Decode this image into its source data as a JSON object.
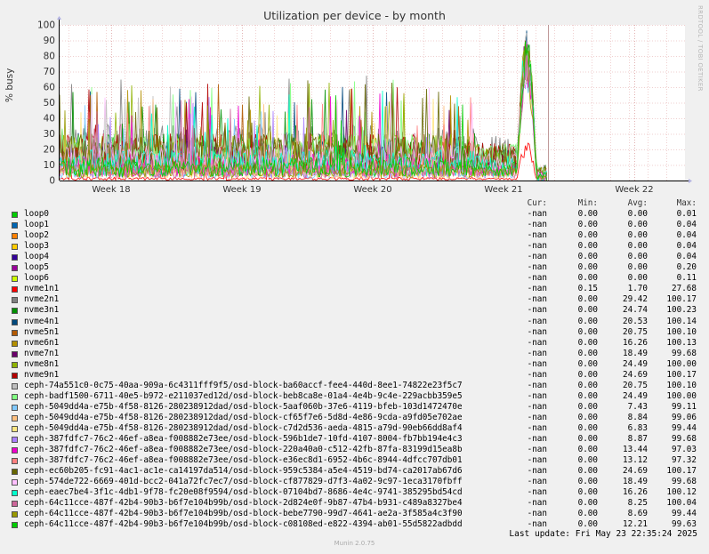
{
  "chart_data": {
    "type": "line",
    "title": "Utilization per device - by month",
    "ylabel": "% busy",
    "ylim": [
      0,
      100
    ],
    "yticks": [
      0,
      10,
      20,
      30,
      40,
      50,
      60,
      70,
      80,
      90,
      100
    ],
    "xticks": [
      "Week 18",
      "Week 19",
      "Week 20",
      "Week 21",
      "Week 22"
    ],
    "grid": true,
    "side_label": "RRDTOOL / TOBI OETIKER",
    "legend_headers": {
      "cur": "Cur:",
      "min": "Min:",
      "avg": "Avg:",
      "max": "Max:"
    },
    "series": [
      {
        "name": "loop0",
        "color": "#00cc00",
        "cur": "-nan",
        "min": "0.00",
        "avg": "0.00",
        "max": "0.01"
      },
      {
        "name": "loop1",
        "color": "#0066b3",
        "cur": "-nan",
        "min": "0.00",
        "avg": "0.00",
        "max": "0.04"
      },
      {
        "name": "loop2",
        "color": "#ff8000",
        "cur": "-nan",
        "min": "0.00",
        "avg": "0.00",
        "max": "0.04"
      },
      {
        "name": "loop3",
        "color": "#ffcc00",
        "cur": "-nan",
        "min": "0.00",
        "avg": "0.00",
        "max": "0.04"
      },
      {
        "name": "loop4",
        "color": "#330099",
        "cur": "-nan",
        "min": "0.00",
        "avg": "0.00",
        "max": "0.04"
      },
      {
        "name": "loop5",
        "color": "#990099",
        "cur": "-nan",
        "min": "0.00",
        "avg": "0.00",
        "max": "0.20"
      },
      {
        "name": "loop6",
        "color": "#ccff00",
        "cur": "-nan",
        "min": "0.00",
        "avg": "0.00",
        "max": "0.11"
      },
      {
        "name": "nvme1n1",
        "color": "#ff0000",
        "cur": "-nan",
        "min": "0.15",
        "avg": "1.70",
        "max": "27.68"
      },
      {
        "name": "nvme2n1",
        "color": "#808080",
        "cur": "-nan",
        "min": "0.00",
        "avg": "29.42",
        "max": "100.17"
      },
      {
        "name": "nvme3n1",
        "color": "#008f00",
        "cur": "-nan",
        "min": "0.00",
        "avg": "24.74",
        "max": "100.23"
      },
      {
        "name": "nvme4n1",
        "color": "#00487d",
        "cur": "-nan",
        "min": "0.00",
        "avg": "20.53",
        "max": "100.14"
      },
      {
        "name": "nvme5n1",
        "color": "#b35a00",
        "cur": "-nan",
        "min": "0.00",
        "avg": "20.75",
        "max": "100.10"
      },
      {
        "name": "nvme6n1",
        "color": "#b38f00",
        "cur": "-nan",
        "min": "0.00",
        "avg": "16.26",
        "max": "100.13"
      },
      {
        "name": "nvme7n1",
        "color": "#6b006b",
        "cur": "-nan",
        "min": "0.00",
        "avg": "18.49",
        "max": "99.68"
      },
      {
        "name": "nvme8n1",
        "color": "#8fb300",
        "cur": "-nan",
        "min": "0.00",
        "avg": "24.49",
        "max": "100.00"
      },
      {
        "name": "nvme9n1",
        "color": "#b30000",
        "cur": "-nan",
        "min": "0.00",
        "avg": "24.69",
        "max": "100.17"
      },
      {
        "name": "ceph-74a551c0-0c75-40aa-909a-6c4311fff9f5/osd-block-ba60accf-fee4-440d-8ee1-74822e23f5c7",
        "color": "#bebebe",
        "cur": "-nan",
        "min": "0.00",
        "avg": "20.75",
        "max": "100.10"
      },
      {
        "name": "ceph-badf1500-6711-40e5-b972-e211037ed12d/osd-block-beb8ca8e-01a4-4e4b-9c4e-229acbb359e5",
        "color": "#80ff80",
        "cur": "-nan",
        "min": "0.00",
        "avg": "24.49",
        "max": "100.00"
      },
      {
        "name": "ceph-5049dd4a-e75b-4f58-8126-280238912dad/osd-block-5aaf060b-37e6-4119-bfeb-103d1472470e",
        "color": "#80c9ff",
        "cur": "-nan",
        "min": "0.00",
        "avg": "7.43",
        "max": "99.11"
      },
      {
        "name": "ceph-5049dd4a-e75b-4f58-8126-280238912dad/osd-block-cf65f7e6-5d8d-4e86-9cda-a9fd05e702ae",
        "color": "#ffc080",
        "cur": "-nan",
        "min": "0.00",
        "avg": "8.84",
        "max": "99.06"
      },
      {
        "name": "ceph-5049dd4a-e75b-4f58-8126-280238912dad/osd-block-c7d2d536-aeda-4815-a79d-90eb66dd8af4",
        "color": "#ffe680",
        "cur": "-nan",
        "min": "0.00",
        "avg": "6.83",
        "max": "99.44"
      },
      {
        "name": "ceph-387fdfc7-76c2-46ef-a8ea-f008882e73ee/osd-block-596b1de7-10fd-4107-8004-fb7bb194e4c3",
        "color": "#aa80ff",
        "cur": "-nan",
        "min": "0.00",
        "avg": "8.87",
        "max": "99.68"
      },
      {
        "name": "ceph-387fdfc7-76c2-46ef-a8ea-f008882e73ee/osd-block-220a40a0-c512-42fb-87fa-83199d15ea8b",
        "color": "#ee00cc",
        "cur": "-nan",
        "min": "0.00",
        "avg": "13.44",
        "max": "97.03"
      },
      {
        "name": "ceph-387fdfc7-76c2-46ef-a8ea-f008882e73ee/osd-block-e36ec8d1-6952-4b6c-8944-4dfcc707db01",
        "color": "#ff8080",
        "cur": "-nan",
        "min": "0.00",
        "avg": "13.12",
        "max": "97.32"
      },
      {
        "name": "ceph-ec60b205-fc91-4ac1-ac1e-ca14197da514/osd-block-959c5384-a5e4-4519-bd74-ca2017ab67d6",
        "color": "#666600",
        "cur": "-nan",
        "min": "0.00",
        "avg": "24.69",
        "max": "100.17"
      },
      {
        "name": "ceph-574de722-6669-401d-bcc2-041a72fc7ec7/osd-block-cf877829-d7f3-4a02-9c97-1eca3170fbff",
        "color": "#ffbfff",
        "cur": "-nan",
        "min": "0.00",
        "avg": "18.49",
        "max": "99.68"
      },
      {
        "name": "ceph-eaec7be4-3f1c-4db1-9f78-fc20e08f9594/osd-block-07104bd7-8686-4e4c-9741-385295bd54cd",
        "color": "#00ffcc",
        "cur": "-nan",
        "min": "0.00",
        "avg": "16.26",
        "max": "100.12"
      },
      {
        "name": "ceph-64c11cce-487f-42b4-90b3-b6f7e104b99b/osd-block-2d824e0f-9b87-47b4-b931-c489a8327be4",
        "color": "#cc6699",
        "cur": "-nan",
        "min": "0.00",
        "avg": "8.25",
        "max": "100.04"
      },
      {
        "name": "ceph-64c11cce-487f-42b4-90b3-b6f7e104b99b/osd-block-bebe7790-99d7-4641-ae2a-3f585a4c3f90",
        "color": "#999900",
        "cur": "-nan",
        "min": "0.00",
        "avg": "8.69",
        "max": "99.44"
      },
      {
        "name": "ceph-64c11cce-487f-42b4-90b3-b6f7e104b99b/osd-block-c08108ed-e822-4394-ab01-55d5822adbdd",
        "color": "#00cc00",
        "cur": "-nan",
        "min": "0.00",
        "avg": "12.21",
        "max": "99.63"
      }
    ]
  },
  "last_update": "Last update: Fri May 23 22:35:24 2025",
  "footer": "Munin 2.0.75"
}
